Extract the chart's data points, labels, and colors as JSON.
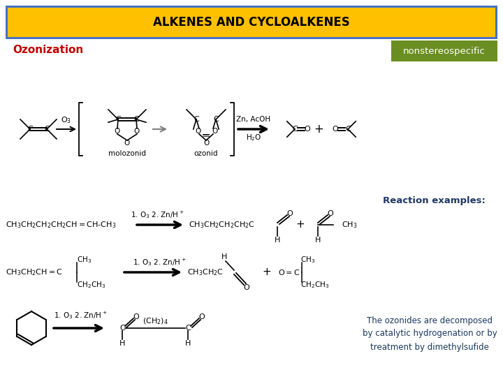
{
  "title": "ALKENES AND CYCLOALKENES",
  "title_bg": "#FFC000",
  "title_border": "#4472C4",
  "title_text_color": "#000000",
  "ozonization_label": "Ozonization",
  "ozonization_color": "#C00000",
  "nonstereo_label": "nonstereospecific",
  "nonstereo_bg": "#6B8E23",
  "nonstereo_text_color": "#FFFFFF",
  "reaction_examples_label": "Reaction examples:",
  "reaction_examples_color": "#1F3864",
  "bottom_note": "The ozonides are decomposed\nby catalytic hydrogenation or by\ntreatment by dimethylsufide",
  "bottom_note_color": "#17375E",
  "bg_color": "#FFFFFF",
  "slide_bg": "#FFFFFF"
}
